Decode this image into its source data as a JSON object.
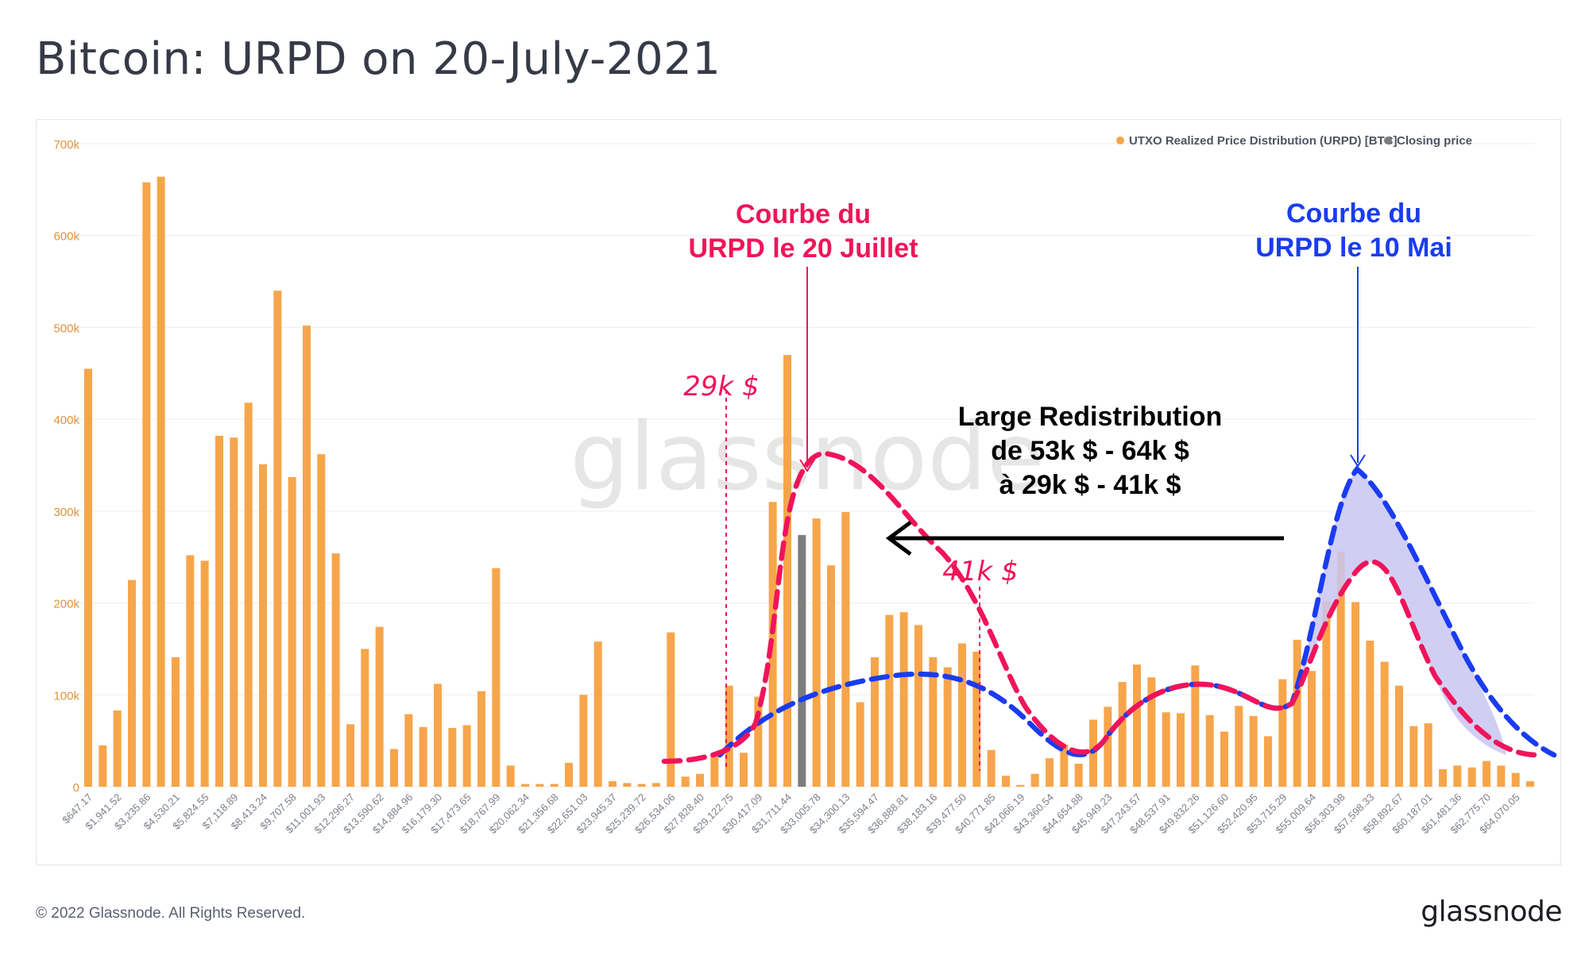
{
  "title": "Bitcoin: URPD on 20-July-2021",
  "footer": {
    "copyright": "© 2022 Glassnode. All Rights Reserved.",
    "logo": "glassnode"
  },
  "watermark": "glassnode",
  "colors": {
    "bar": "#f7a54a",
    "closing": "#7d7d7d",
    "july_curve": "#f0145a",
    "may_curve": "#1a3cf0",
    "may_fill": "#c9c5f2",
    "arrow": "#000000",
    "title": "#363a47"
  },
  "chart_data": {
    "type": "bar",
    "ylim": [
      0,
      700000
    ],
    "y_ticks": [
      0,
      100000,
      200000,
      300000,
      400000,
      500000,
      600000,
      700000
    ],
    "y_tick_labels": [
      "0",
      "100k",
      "200k",
      "300k",
      "400k",
      "500k",
      "600k",
      "700k"
    ],
    "x_tick_labels": [
      "$647.17",
      "$1,941.52",
      "$3,235.86",
      "$4,530.21",
      "$5,824.55",
      "$7,118.89",
      "$8,413.24",
      "$9,707.58",
      "$11,001.93",
      "$12,296.27",
      "$13,590.62",
      "$14,884.96",
      "$16,179.30",
      "$17,473.65",
      "$18,767.99",
      "$20,062.34",
      "$21,356.68",
      "$22,651.03",
      "$23,945.37",
      "$25,239.72",
      "$26,534.06",
      "$27,828.40",
      "$29,122.75",
      "$30,417.09",
      "$31,711.44",
      "$33,005.78",
      "$34,300.13",
      "$35,594.47",
      "$36,888.81",
      "$38,183.16",
      "$39,477.50",
      "$40,771.85",
      "$42,066.19",
      "$43,360.54",
      "$44,654.88",
      "$45,949.23",
      "$47,243.57",
      "$48,537.91",
      "$49,832.26",
      "$51,126.60",
      "$52,420.95",
      "$53,715.29",
      "$55,009.64",
      "$56,303.98",
      "$57,598.33",
      "$58,892.67",
      "$60,187.01",
      "$61,481.36",
      "$62,775.70",
      "$64,070.05"
    ],
    "closing_price_index": 49,
    "series": [
      {
        "name": "UTXO Realized Price Distribution (URPD) [BTC]",
        "values": [
          455000,
          45000,
          83000,
          225000,
          658000,
          664000,
          141000,
          252000,
          246000,
          382000,
          380000,
          418000,
          351000,
          540000,
          337000,
          502000,
          362000,
          254000,
          68000,
          150000,
          174000,
          41000,
          79000,
          65000,
          112000,
          64000,
          67000,
          104000,
          238000,
          23000,
          3000,
          3000,
          3000,
          26000,
          100000,
          158000,
          6000,
          4000,
          3000,
          4000,
          168000,
          11000,
          14000,
          33000,
          110000,
          37000,
          98000,
          310000,
          470000,
          274000,
          292000,
          241000,
          299000,
          92000,
          141000,
          187000,
          190000,
          176000,
          141000,
          130000,
          156000,
          147000,
          40000,
          12000,
          2000,
          14000,
          31000,
          46000,
          25000,
          73000,
          87000,
          114000,
          133000,
          119000,
          81000,
          80000,
          132000,
          78000,
          60000,
          88000,
          77000,
          55000,
          117000,
          160000,
          126000,
          202000,
          256000,
          201000,
          159000,
          136000,
          110000,
          66000,
          69000,
          19000,
          23000,
          21000,
          28000,
          23000,
          15000,
          6000
        ]
      },
      {
        "name": "Closing price"
      }
    ],
    "legend": "top-right"
  },
  "annotations": {
    "july_label_line1": "Courbe du",
    "july_label_line2": "URPD le 20 Juillet",
    "may_label_line1": "Courbe du",
    "may_label_line2": "URPD le 10 Mai",
    "price_29k": "29k $",
    "price_41k": "41k $",
    "redistribution_line1": "Large Redistribution",
    "redistribution_line2": "de 53k $ - 64k $",
    "redistribution_line3": "à 29k $ - 41k $"
  }
}
